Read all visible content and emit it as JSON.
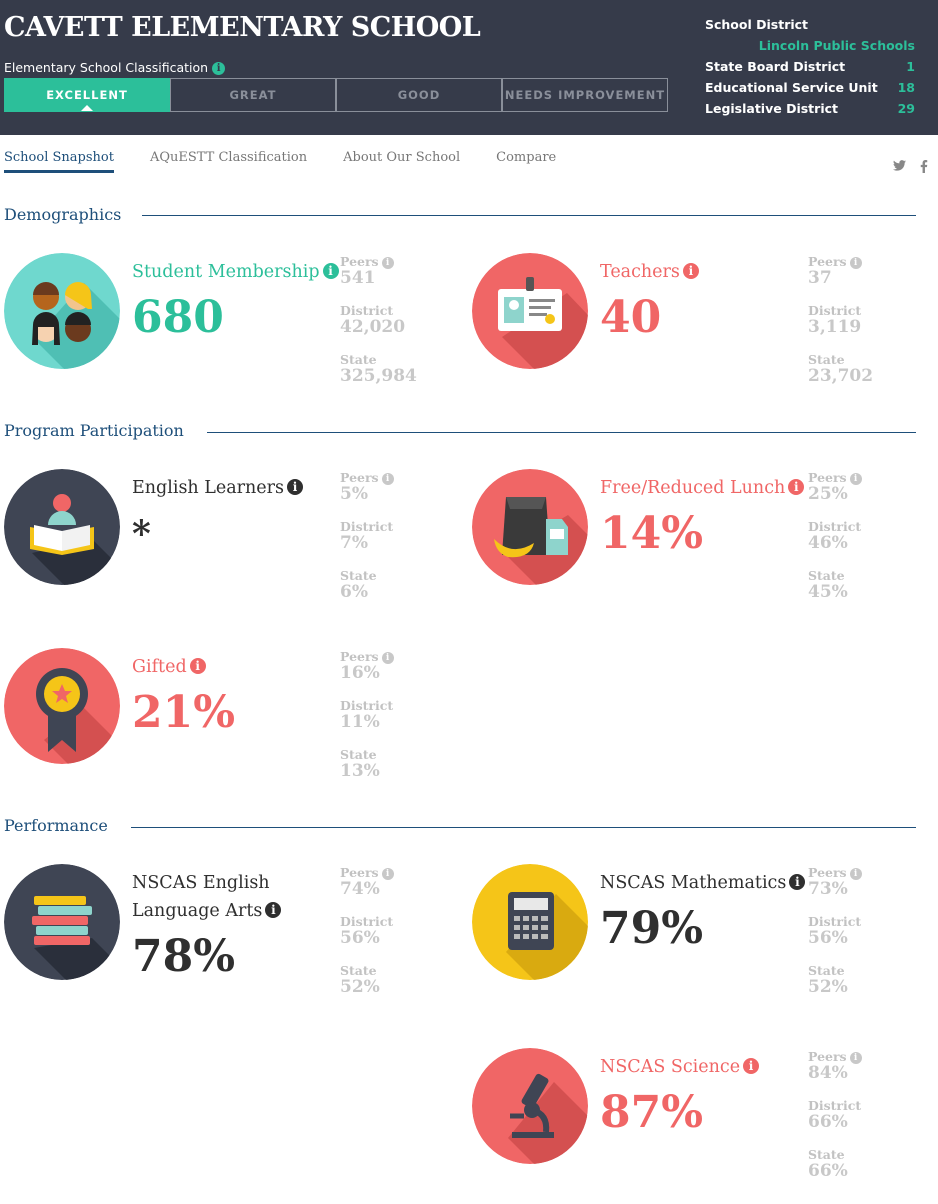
{
  "header": {
    "school_name": "CAVETT ELEMENTARY SCHOOL",
    "classification_label": "Elementary School Classification",
    "classification_tabs": [
      "EXCELLENT",
      "GREAT",
      "GOOD",
      "NEEDS IMPROVEMENT"
    ],
    "active_classification": "EXCELLENT",
    "district": {
      "school_district_label": "School District",
      "school_district_value": "Lincoln Public Schools",
      "state_board_label": "State Board District",
      "state_board_value": "1",
      "esu_label": "Educational Service Unit",
      "esu_value": "18",
      "legislative_label": "Legislative District",
      "legislative_value": "29"
    }
  },
  "nav": {
    "tabs": [
      "School Snapshot",
      "AQuESTT Classification",
      "About Our School",
      "Compare"
    ],
    "active": "School Snapshot",
    "social_icons": [
      "twitter-icon",
      "facebook-icon"
    ]
  },
  "sections": {
    "demographics": "Demographics",
    "program": "Program Participation",
    "performance": "Performance"
  },
  "stat_labels": {
    "peers": "Peers",
    "district": "District",
    "state": "State"
  },
  "metrics": {
    "student_membership": {
      "label": "Student Membership",
      "value": "680",
      "peers": "541",
      "district": "42,020",
      "state": "325,984"
    },
    "teachers": {
      "label": "Teachers",
      "value": "40",
      "peers": "37",
      "district": "3,119",
      "state": "23,702"
    },
    "english_learners": {
      "label": "English Learners",
      "value": "*",
      "peers": "5%",
      "district": "7%",
      "state": "6%"
    },
    "free_lunch": {
      "label": "Free/Reduced Lunch",
      "value": "14%",
      "peers": "25%",
      "district": "46%",
      "state": "45%"
    },
    "gifted": {
      "label": "Gifted",
      "value": "21%",
      "peers": "16%",
      "district": "11%",
      "state": "13%"
    },
    "nscas_ela": {
      "label_line1": "NSCAS English",
      "label_line2": "Language Arts",
      "value": "78%",
      "peers": "74%",
      "district": "56%",
      "state": "52%"
    },
    "nscas_math": {
      "label": "NSCAS Mathematics",
      "value": "79%",
      "peers": "73%",
      "district": "56%",
      "state": "52%"
    },
    "nscas_science": {
      "label": "NSCAS Science",
      "value": "87%",
      "peers": "84%",
      "district": "66%",
      "state": "66%"
    }
  },
  "colors": {
    "teal": "#2cbf9a",
    "coral": "#f06666",
    "navy": "#363b4a",
    "blue": "#1e4f7a",
    "yellow": "#f5c518"
  }
}
